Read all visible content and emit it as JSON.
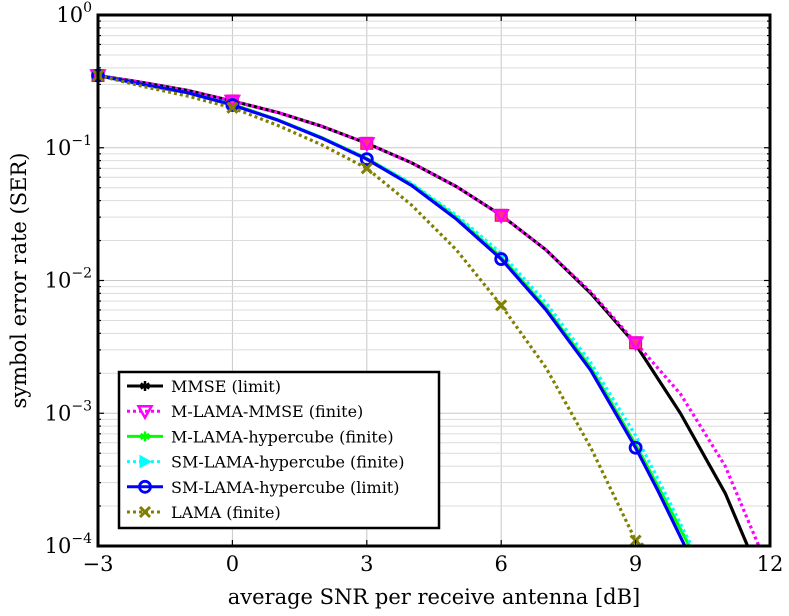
{
  "chart_data": {
    "type": "line",
    "xlabel": "average SNR per receive antenna [dB]",
    "ylabel": "symbol error rate (SER)",
    "xlim": [
      -3,
      12
    ],
    "ylim": [
      0.0001,
      1
    ],
    "yscale": "log",
    "grid": true,
    "legend_position": "bottom-left",
    "x_ticks": [
      {
        "value": -3,
        "label": "−3"
      },
      {
        "value": 0,
        "label": "0"
      },
      {
        "value": 3,
        "label": "3"
      },
      {
        "value": 6,
        "label": "6"
      },
      {
        "value": 9,
        "label": "9"
      },
      {
        "value": 12,
        "label": "12"
      }
    ],
    "y_ticks": [
      {
        "value": 1,
        "base": "10",
        "exp": "0"
      },
      {
        "value": 0.1,
        "base": "10",
        "exp": "−1"
      },
      {
        "value": 0.01,
        "base": "10",
        "exp": "−2"
      },
      {
        "value": 0.001,
        "base": "10",
        "exp": "−3"
      },
      {
        "value": 0.0001,
        "base": "10",
        "exp": "−4"
      }
    ],
    "series": [
      {
        "name": "MMSE (limit)",
        "color": "#000000",
        "dash": "solid",
        "marker": "star",
        "marker_x": [],
        "x": [
          -3,
          -2,
          -1,
          0,
          1,
          2,
          3,
          4,
          5,
          6,
          7,
          8,
          9,
          10,
          11,
          11.5
        ],
        "y": [
          0.35,
          0.31,
          0.27,
          0.225,
          0.185,
          0.145,
          0.108,
          0.077,
          0.051,
          0.031,
          0.017,
          0.008,
          0.0033,
          0.001,
          0.00025,
          0.0001
        ]
      },
      {
        "name": "M-LAMA-MMSE (finite)",
        "color": "#ff00ff",
        "dash": "dotted",
        "marker": "triangle-down",
        "marker_x": [
          -3,
          0,
          3,
          6,
          9
        ],
        "x": [
          -3,
          -2,
          -1,
          0,
          1,
          2,
          3,
          4,
          5,
          6,
          7,
          8,
          9,
          10,
          11,
          11.75
        ],
        "y": [
          0.35,
          0.31,
          0.27,
          0.225,
          0.185,
          0.145,
          0.108,
          0.077,
          0.051,
          0.031,
          0.017,
          0.0082,
          0.0034,
          0.0014,
          0.0004,
          0.0001
        ]
      },
      {
        "name": "M-LAMA-hypercube (finite)",
        "color": "#00ff00",
        "dash": "solid",
        "marker": "star",
        "marker_x": [],
        "x": [
          -3,
          -2,
          -1,
          0,
          1,
          2,
          3,
          4,
          5,
          6,
          7,
          8,
          9,
          9.5,
          10.2
        ],
        "y": [
          0.35,
          0.3,
          0.26,
          0.212,
          0.163,
          0.119,
          0.083,
          0.053,
          0.03,
          0.015,
          0.0062,
          0.0022,
          0.00058,
          0.00028,
          0.0001
        ]
      },
      {
        "name": "SM-LAMA-hypercube (finite)",
        "color": "#00ffff",
        "dash": "dotted",
        "marker": "triangle-right",
        "marker_x": [],
        "x": [
          -3,
          -2,
          -1,
          0,
          1,
          2,
          3,
          4,
          5,
          6,
          7,
          8,
          9,
          9.5,
          10.25
        ],
        "y": [
          0.35,
          0.3,
          0.26,
          0.212,
          0.163,
          0.119,
          0.083,
          0.054,
          0.031,
          0.016,
          0.0068,
          0.0024,
          0.00068,
          0.00032,
          0.0001
        ]
      },
      {
        "name": "SM-LAMA-hypercube (limit)",
        "color": "#0000ff",
        "dash": "solid",
        "marker": "circle",
        "marker_x": [
          -3,
          0,
          3,
          6,
          9
        ],
        "x": [
          -3,
          -2,
          -1,
          0,
          1,
          2,
          3,
          4,
          5,
          6,
          7,
          8,
          9,
          9.5,
          10.1
        ],
        "y": [
          0.35,
          0.3,
          0.26,
          0.21,
          0.162,
          0.118,
          0.082,
          0.052,
          0.029,
          0.0145,
          0.006,
          0.0021,
          0.00055,
          0.00026,
          0.0001
        ]
      },
      {
        "name": "LAMA (finite)",
        "color": "#808000",
        "dash": "dotted",
        "marker": "x",
        "marker_x": [
          -3,
          0,
          3,
          6,
          9
        ],
        "x": [
          -3,
          -2,
          -1,
          0,
          1,
          2,
          3,
          4,
          5,
          6,
          7,
          8,
          9,
          9.2
        ],
        "y": [
          0.35,
          0.29,
          0.245,
          0.2,
          0.148,
          0.105,
          0.07,
          0.037,
          0.017,
          0.0065,
          0.0022,
          0.00055,
          0.00011,
          0.0001
        ]
      }
    ]
  }
}
